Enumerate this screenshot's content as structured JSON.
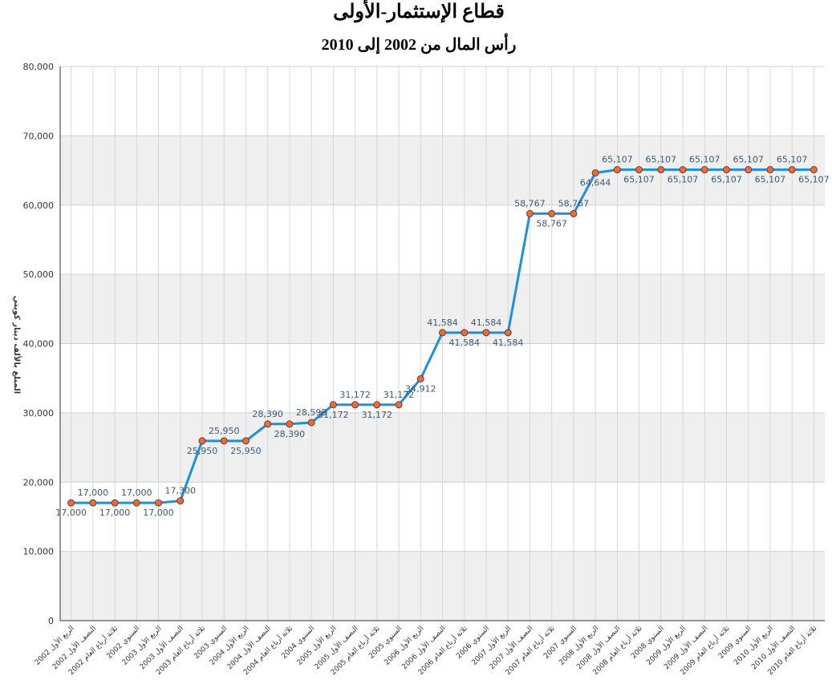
{
  "chart_data": {
    "type": "line",
    "title": "قطاع الإستثمار-الأولى",
    "subtitle": "رأس المال من 2002 إلى 2010",
    "y_label": "المبلغ بالألف دينار كويتي",
    "categories": [
      "الربع الأول 2002",
      "النصف الأول 2002",
      "ثلاثة أرباع العام 2002",
      "السنوي 2002",
      "الربع الأول 2003",
      "النصف الأول 2003",
      "ثلاثة أرباع العام 2003",
      "السنوي 2003",
      "الربع الأول 2004",
      "النصف الأول 2004",
      "ثلاثة أرباع العام 2004",
      "السنوي 2004",
      "الربع الأول 2005",
      "النصف الأول 2005",
      "ثلاثة أرباع العام 2005",
      "السنوي 2005",
      "الربع الأول 2006",
      "النصف الأول 2006",
      "ثلاثة أرباع العام 2006",
      "السنوي 2006",
      "الربع الأول 2007",
      "النصف الأول 2007",
      "ثلاثة أرباع العام 2007",
      "السنوي 2007",
      "الربع الأول 2008",
      "النصف الأول 2008",
      "ثلاثة أرباع العام 2008",
      "السنوي 2008",
      "الربع الأول 2009",
      "النصف الأول 2009",
      "ثلاثة أرباع العام 2009",
      "السنوي 2009",
      "الربع الأول 2010",
      "النصف الأول 2010",
      "ثلاثة أرباع العام 2010"
    ],
    "values": [
      17000,
      17000,
      17000,
      17000,
      17000,
      17300,
      25950,
      25950,
      25950,
      28390,
      28390,
      28598,
      31172,
      31172,
      31172,
      31172,
      34912,
      41584,
      41584,
      41584,
      41584,
      58767,
      58767,
      58767,
      64644,
      65107,
      65107,
      65107,
      65107,
      65107,
      65107,
      65107,
      65107,
      65107,
      65107
    ],
    "value_labels": [
      "17,000",
      "17,000",
      "17,000",
      "17,000",
      "17,000",
      "17,300",
      "25,950",
      "25,950",
      "25,950",
      "28,390",
      "28,390",
      "28,598",
      "31,172",
      "31,172",
      "31,172",
      "31,172",
      "34,912",
      "41,584",
      "41,584",
      "41,584",
      "41,584",
      "58,767",
      "58,767",
      "58,767",
      "64,644",
      "65,107",
      "65,107",
      "65,107",
      "65,107",
      "65,107",
      "65,107",
      "65,107",
      "65,107",
      "65,107",
      "65,107"
    ],
    "color": "#1e8fe0",
    "marker_color": "#ee6a3a",
    "ylim": [
      0,
      80000
    ],
    "yticks": [
      0,
      {
        "value": 10000,
        "label": "10,000"
      },
      {
        "value": 20000,
        "label": "20,000"
      },
      {
        "value": 30000,
        "label": "30,000"
      },
      {
        "value": 40000,
        "label": "40,000"
      },
      {
        "value": 50000,
        "label": "50,000"
      },
      {
        "value": 60000,
        "label": "60,000"
      },
      {
        "value": 70000,
        "label": "70,000"
      },
      {
        "value": 80000,
        "label": "80,000"
      }
    ],
    "grid": true
  }
}
